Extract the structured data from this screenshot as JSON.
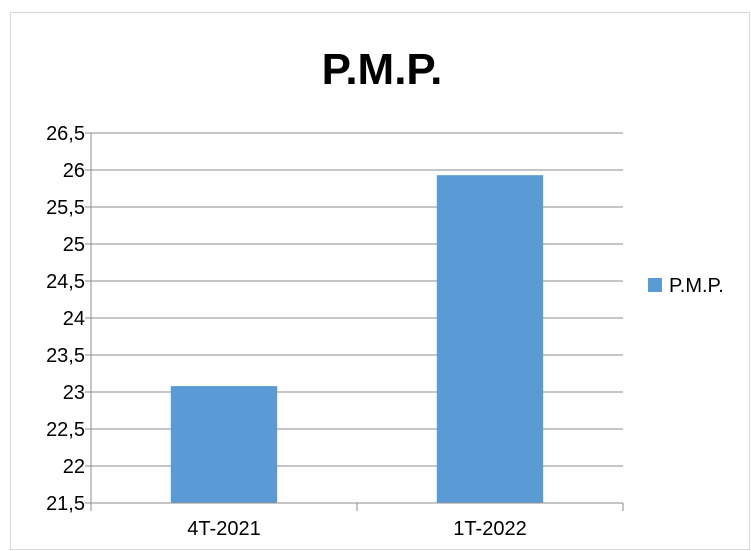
{
  "chart_data": {
    "type": "bar",
    "title": "P.M.P.",
    "categories": [
      "4T-2021",
      "1T-2022"
    ],
    "series": [
      {
        "name": "P.M.P.",
        "values": [
          23.08,
          25.93
        ],
        "color": "#5b9bd5"
      }
    ],
    "ylim": [
      21.5,
      26.5
    ],
    "yticks": [
      "21,5",
      "22",
      "22,5",
      "23",
      "23,5",
      "24",
      "24,5",
      "25",
      "25,5",
      "26",
      "26,5"
    ],
    "grid": true,
    "legend": "right"
  }
}
